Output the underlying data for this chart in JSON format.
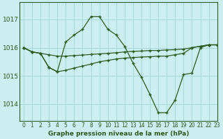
{
  "title": "Graphe pression niveau de la mer (hPa)",
  "background_color": "#cceef0",
  "line_color": "#2d5a1e",
  "grid_color": "#a8d8d8",
  "xlim": [
    -0.5,
    23
  ],
  "ylim": [
    1013.4,
    1017.6
  ],
  "yticks": [
    1014,
    1015,
    1016,
    1017
  ],
  "xticks": [
    0,
    1,
    2,
    3,
    4,
    5,
    6,
    7,
    8,
    9,
    10,
    11,
    12,
    13,
    14,
    15,
    16,
    17,
    18,
    19,
    20,
    21,
    22,
    23
  ],
  "series": [
    {
      "x": [
        0,
        1,
        2,
        3,
        4,
        5,
        6,
        7,
        8,
        9,
        10,
        11,
        12,
        13,
        14,
        15,
        16,
        17,
        18,
        19,
        20,
        21,
        22,
        23
      ],
      "y": [
        1016.0,
        1015.85,
        1015.8,
        1015.3,
        1015.15,
        1016.2,
        1016.45,
        1016.65,
        1017.1,
        1017.1,
        1016.65,
        1016.45,
        1016.05,
        1015.45,
        1014.95,
        1014.35,
        1013.7,
        1013.7,
        1014.15,
        1015.05,
        1015.1,
        1016.0,
        1016.1,
        1016.1
      ]
    },
    {
      "x": [
        0,
        1,
        2,
        3,
        4,
        5,
        6,
        7,
        8,
        9,
        10,
        11,
        12,
        13,
        14,
        15,
        16,
        17,
        18,
        19,
        20,
        21,
        22,
        23
      ],
      "y": [
        1016.0,
        1015.85,
        1015.8,
        1015.75,
        1015.7,
        1015.7,
        1015.72,
        1015.74,
        1015.76,
        1015.78,
        1015.8,
        1015.82,
        1015.85,
        1015.87,
        1015.88,
        1015.9,
        1015.9,
        1015.92,
        1015.93,
        1015.95,
        1016.0,
        1016.05,
        1016.1,
        1016.1
      ]
    },
    {
      "x": [
        0,
        1,
        2,
        3,
        4,
        5,
        6,
        7,
        8,
        9,
        10,
        11,
        12,
        13,
        14,
        15,
        16,
        17,
        18,
        19,
        20,
        21,
        22,
        23
      ],
      "y": [
        1016.0,
        1015.85,
        1015.8,
        1015.3,
        1015.15,
        1015.2,
        1015.28,
        1015.35,
        1015.42,
        1015.5,
        1015.55,
        1015.6,
        1015.63,
        1015.65,
        1015.67,
        1015.68,
        1015.7,
        1015.7,
        1015.75,
        1015.8,
        1016.0,
        1016.05,
        1016.1,
        1016.1
      ]
    }
  ]
}
